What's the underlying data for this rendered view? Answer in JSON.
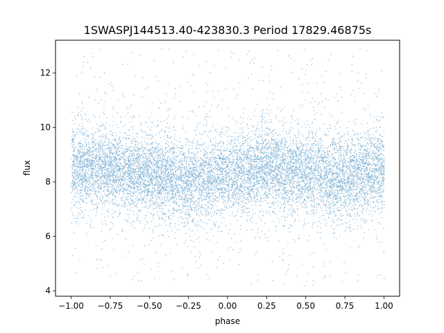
{
  "chart_data": {
    "type": "scatter",
    "title": "1SWASPJ144513.40-423830.3 Period 17829.46875s",
    "xlabel": "phase",
    "ylabel": "flux",
    "xlim": [
      -1.1,
      1.1
    ],
    "ylim": [
      3.8,
      13.2
    ],
    "xticks": [
      -1.0,
      -0.75,
      -0.5,
      -0.25,
      0.0,
      0.25,
      0.5,
      0.75,
      1.0
    ],
    "xtick_labels": [
      "−1.00",
      "−0.75",
      "−0.50",
      "−0.25",
      "0.00",
      "0.25",
      "0.50",
      "0.75",
      "1.00"
    ],
    "yticks": [
      4,
      6,
      8,
      10,
      12
    ],
    "ytick_labels": [
      "4",
      "6",
      "8",
      "10",
      "12"
    ],
    "grid": false,
    "color": "#1f77b4",
    "x_range": [
      -1.0,
      1.0
    ],
    "y_range": [
      4.2,
      12.9
    ],
    "median_profile": {
      "phase": [
        -1.0,
        -0.75,
        -0.5,
        -0.25,
        0.0,
        0.25,
        0.5,
        0.75,
        1.0
      ],
      "flux": [
        8.55,
        8.45,
        8.3,
        8.05,
        8.25,
        8.55,
        8.35,
        8.1,
        8.5
      ]
    },
    "scatter_sigma": 0.75
  }
}
